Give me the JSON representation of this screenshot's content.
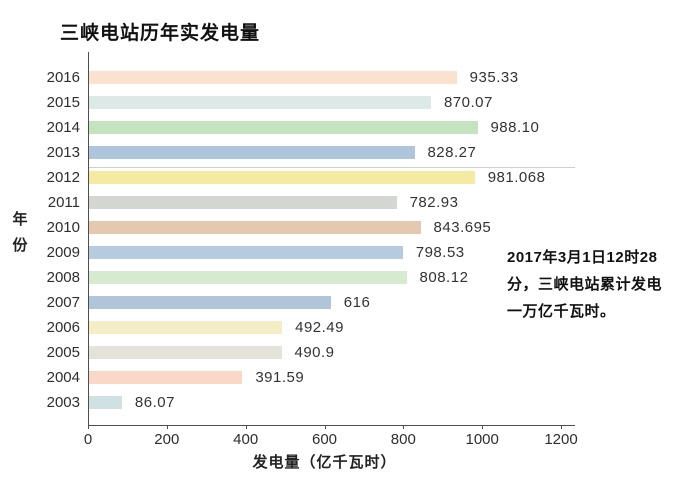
{
  "chart_data": {
    "type": "bar",
    "orientation": "horizontal",
    "title": "三峡电站历年实发电量",
    "xlabel": "发电量（亿千瓦时）",
    "ylabel": "年份",
    "ylabel_chars": [
      "年",
      "份"
    ],
    "xlim": [
      0,
      1200
    ],
    "xticks": [
      0,
      200,
      400,
      600,
      800,
      1000,
      1200
    ],
    "grid": false,
    "categories": [
      "2016",
      "2015",
      "2014",
      "2013",
      "2012",
      "2011",
      "2010",
      "2009",
      "2008",
      "2007",
      "2006",
      "2005",
      "2004",
      "2003"
    ],
    "values": [
      935.33,
      870.07,
      988.1,
      828.27,
      981.068,
      782.93,
      843.695,
      798.53,
      808.12,
      616,
      492.49,
      490.9,
      391.59,
      86.07
    ],
    "value_labels": [
      "935.33",
      "870.07",
      "988.10",
      "828.27",
      "981.068",
      "782.93",
      "843.695",
      "798.53",
      "808.12",
      "616",
      "492.49",
      "490.9",
      "391.59",
      "86.07"
    ],
    "bar_colors": [
      "#FAE1D0",
      "#DCE9E7",
      "#C5E3BE",
      "#AFC5DB",
      "#F6E9A2",
      "#D4D7D1",
      "#E4C9B0",
      "#B7CBDF",
      "#D5EACF",
      "#B0C5D9",
      "#F5EDC5",
      "#E3E3D9",
      "#F9D8C7",
      "#D0E1E4"
    ]
  },
  "annotation": {
    "lines": [
      "2017年3月1日12时28",
      "分，三峡电站累计发电",
      "一万亿千瓦时。"
    ]
  },
  "colors": {
    "axis": "#4d4d4d",
    "text": "#2e2e2e",
    "highlight_line": "#cfcfcf"
  }
}
